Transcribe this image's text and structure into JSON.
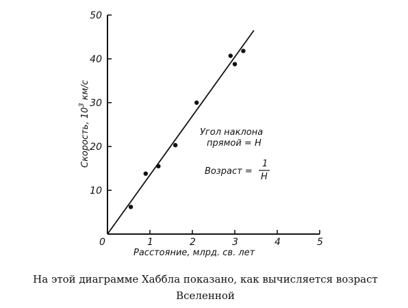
{
  "caption": {
    "line1": "На этой диаграмме Хаббла показано, как вычисляется возраст",
    "line2": "Вселенной"
  },
  "chart_data": {
    "type": "scatter",
    "title": "",
    "xlabel": "Расстояние, млрд. св. лет",
    "ylabel_main": "Скорость, 10",
    "ylabel_exp": "3",
    "ylabel_unit": " км/с",
    "xlim": [
      0,
      5
    ],
    "ylim": [
      0,
      50
    ],
    "x_ticks": [
      0,
      1,
      2,
      3,
      4,
      5
    ],
    "y_ticks": [
      10,
      20,
      30,
      40,
      50
    ],
    "grid": false,
    "series": [
      {
        "points": [
          {
            "x": 0.55,
            "y": 6.2
          },
          {
            "x": 0.9,
            "y": 13.8
          },
          {
            "x": 1.2,
            "y": 15.5
          },
          {
            "x": 1.6,
            "y": 20.3
          },
          {
            "x": 2.1,
            "y": 30.0
          },
          {
            "x": 2.9,
            "y": 40.7
          },
          {
            "x": 3.0,
            "y": 38.8
          },
          {
            "x": 3.2,
            "y": 41.8
          }
        ]
      }
    ],
    "fit_line": {
      "x": [
        0,
        3.45
      ],
      "y": [
        0,
        46.5
      ]
    },
    "annotations": {
      "slope_line1": "Угол наклона",
      "slope_line2": "прямой = H",
      "age_label": "Возраст =",
      "age_numerator": "1",
      "age_denominator": "H"
    }
  }
}
